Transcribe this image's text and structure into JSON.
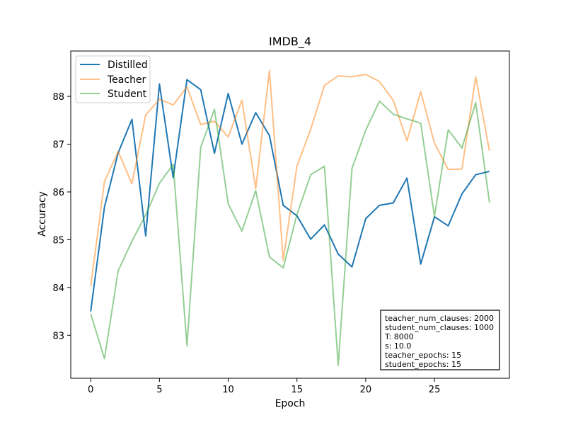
{
  "chart_data": {
    "type": "line",
    "title": "IMDB_4",
    "xlabel": "Epoch",
    "ylabel": "Accuracy",
    "xlim": [
      -1.45,
      30.45
    ],
    "ylim": [
      82.1,
      88.95
    ],
    "xticks": [
      0,
      5,
      10,
      15,
      20,
      25
    ],
    "yticks": [
      83,
      84,
      85,
      86,
      87,
      88
    ],
    "x": [
      0,
      1,
      2,
      3,
      4,
      5,
      6,
      7,
      8,
      9,
      10,
      11,
      12,
      13,
      14,
      15,
      16,
      17,
      18,
      19,
      20,
      21,
      22,
      23,
      24,
      25,
      26,
      27,
      28,
      29
    ],
    "legend_position": "upper left",
    "grid": false,
    "series": [
      {
        "name": "Distilled",
        "color": "#1f77b4",
        "opacity": 1.0,
        "values": [
          83.5,
          85.68,
          86.82,
          87.52,
          85.08,
          88.26,
          86.3,
          88.35,
          88.14,
          86.81,
          88.06,
          87.0,
          87.66,
          87.18,
          85.72,
          85.5,
          85.01,
          85.31,
          84.7,
          84.43,
          85.44,
          85.72,
          85.77,
          86.29,
          84.49,
          85.48,
          85.29,
          85.96,
          86.36,
          86.43
        ]
      },
      {
        "name": "Teacher",
        "color": "#ff7f0e",
        "opacity": 0.5,
        "values": [
          84.02,
          86.22,
          86.85,
          86.17,
          87.61,
          87.94,
          87.82,
          88.2,
          87.41,
          87.48,
          87.15,
          87.92,
          86.07,
          88.54,
          84.57,
          86.54,
          87.31,
          88.23,
          88.43,
          88.41,
          88.46,
          88.31,
          87.92,
          87.07,
          88.1,
          87.02,
          86.47,
          86.48,
          88.41,
          86.86
        ]
      },
      {
        "name": "Student",
        "color": "#2ca02c",
        "opacity": 0.5,
        "values": [
          83.45,
          82.51,
          84.35,
          84.97,
          85.52,
          86.18,
          86.58,
          82.78,
          86.93,
          87.73,
          85.75,
          85.18,
          86.03,
          84.64,
          84.41,
          85.53,
          86.36,
          86.54,
          82.37,
          86.49,
          87.29,
          87.9,
          87.63,
          87.53,
          87.44,
          85.49,
          87.3,
          86.92,
          87.87,
          85.78
        ]
      }
    ],
    "annotation": [
      "teacher_num_clauses: 2000",
      "student_num_clauses: 1000",
      "T: 8000",
      "s: 10.0",
      "teacher_epochs: 15",
      "student_epochs: 15"
    ]
  }
}
